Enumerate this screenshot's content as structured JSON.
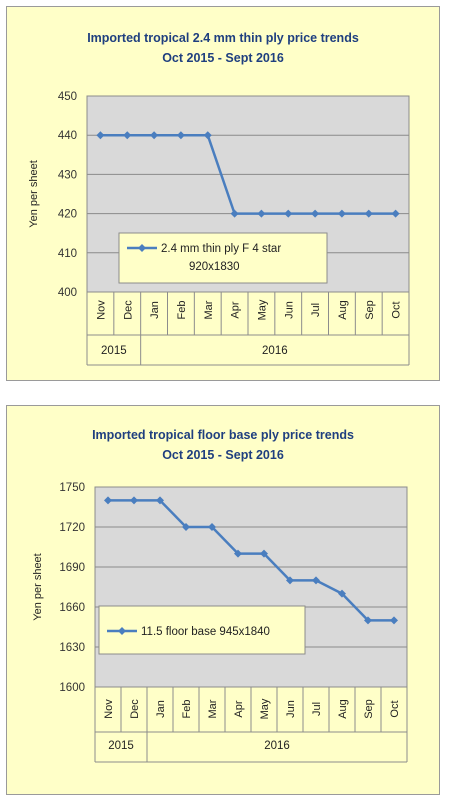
{
  "chart_data": [
    {
      "type": "line",
      "title": "Imported tropical 2.4 mm thin ply price trends",
      "subtitle": "Oct 2015 - Sept 2016",
      "ylabel": "Yen per sheet",
      "ylim": [
        400,
        450
      ],
      "yticks": [
        "400",
        "410",
        "420",
        "430",
        "440",
        "450"
      ],
      "grid": true,
      "categories": [
        "Nov",
        "Dec",
        "Jan",
        "Feb",
        "Mar",
        "Apr",
        "May",
        "Jun",
        "Jul",
        "Aug",
        "Sep",
        "Oct"
      ],
      "years": [
        {
          "label": "2015",
          "from": 0,
          "to": 1
        },
        {
          "label": "2016",
          "from": 2,
          "to": 11
        }
      ],
      "legend": {
        "placement": "lower-middle",
        "lines": [
          "2.4 mm thin ply F 4 star",
          "920x1830"
        ]
      },
      "series": [
        {
          "name": "2.4 mm thin ply F 4 star 920x1830",
          "color": "#4a7ebf",
          "values": [
            440,
            440,
            440,
            440,
            440,
            420,
            420,
            420,
            420,
            420,
            420,
            420
          ]
        }
      ]
    },
    {
      "type": "line",
      "title": "Imported tropical floor base ply price trends",
      "subtitle": "Oct 2015 - Sept 2016",
      "ylabel": "Yen per sheet",
      "ylim": [
        1600,
        1750
      ],
      "yticks": [
        "1600",
        "1630",
        "1660",
        "1690",
        "1720",
        "1750"
      ],
      "grid": true,
      "categories": [
        "Nov",
        "Dec",
        "Jan",
        "Feb",
        "Mar",
        "Apr",
        "May",
        "Jun",
        "Jul",
        "Aug",
        "Sep",
        "Oct"
      ],
      "years": [
        {
          "label": "2015",
          "from": 0,
          "to": 1
        },
        {
          "label": "2016",
          "from": 2,
          "to": 11
        }
      ],
      "legend": {
        "placement": "lower-left",
        "lines": [
          "11.5 floor base 945x1840"
        ]
      },
      "series": [
        {
          "name": "11.5 floor base 945x1840",
          "color": "#4a7ebf",
          "values": [
            1740,
            1740,
            1740,
            1720,
            1720,
            1700,
            1700,
            1680,
            1680,
            1670,
            1650,
            1650
          ]
        }
      ]
    }
  ]
}
